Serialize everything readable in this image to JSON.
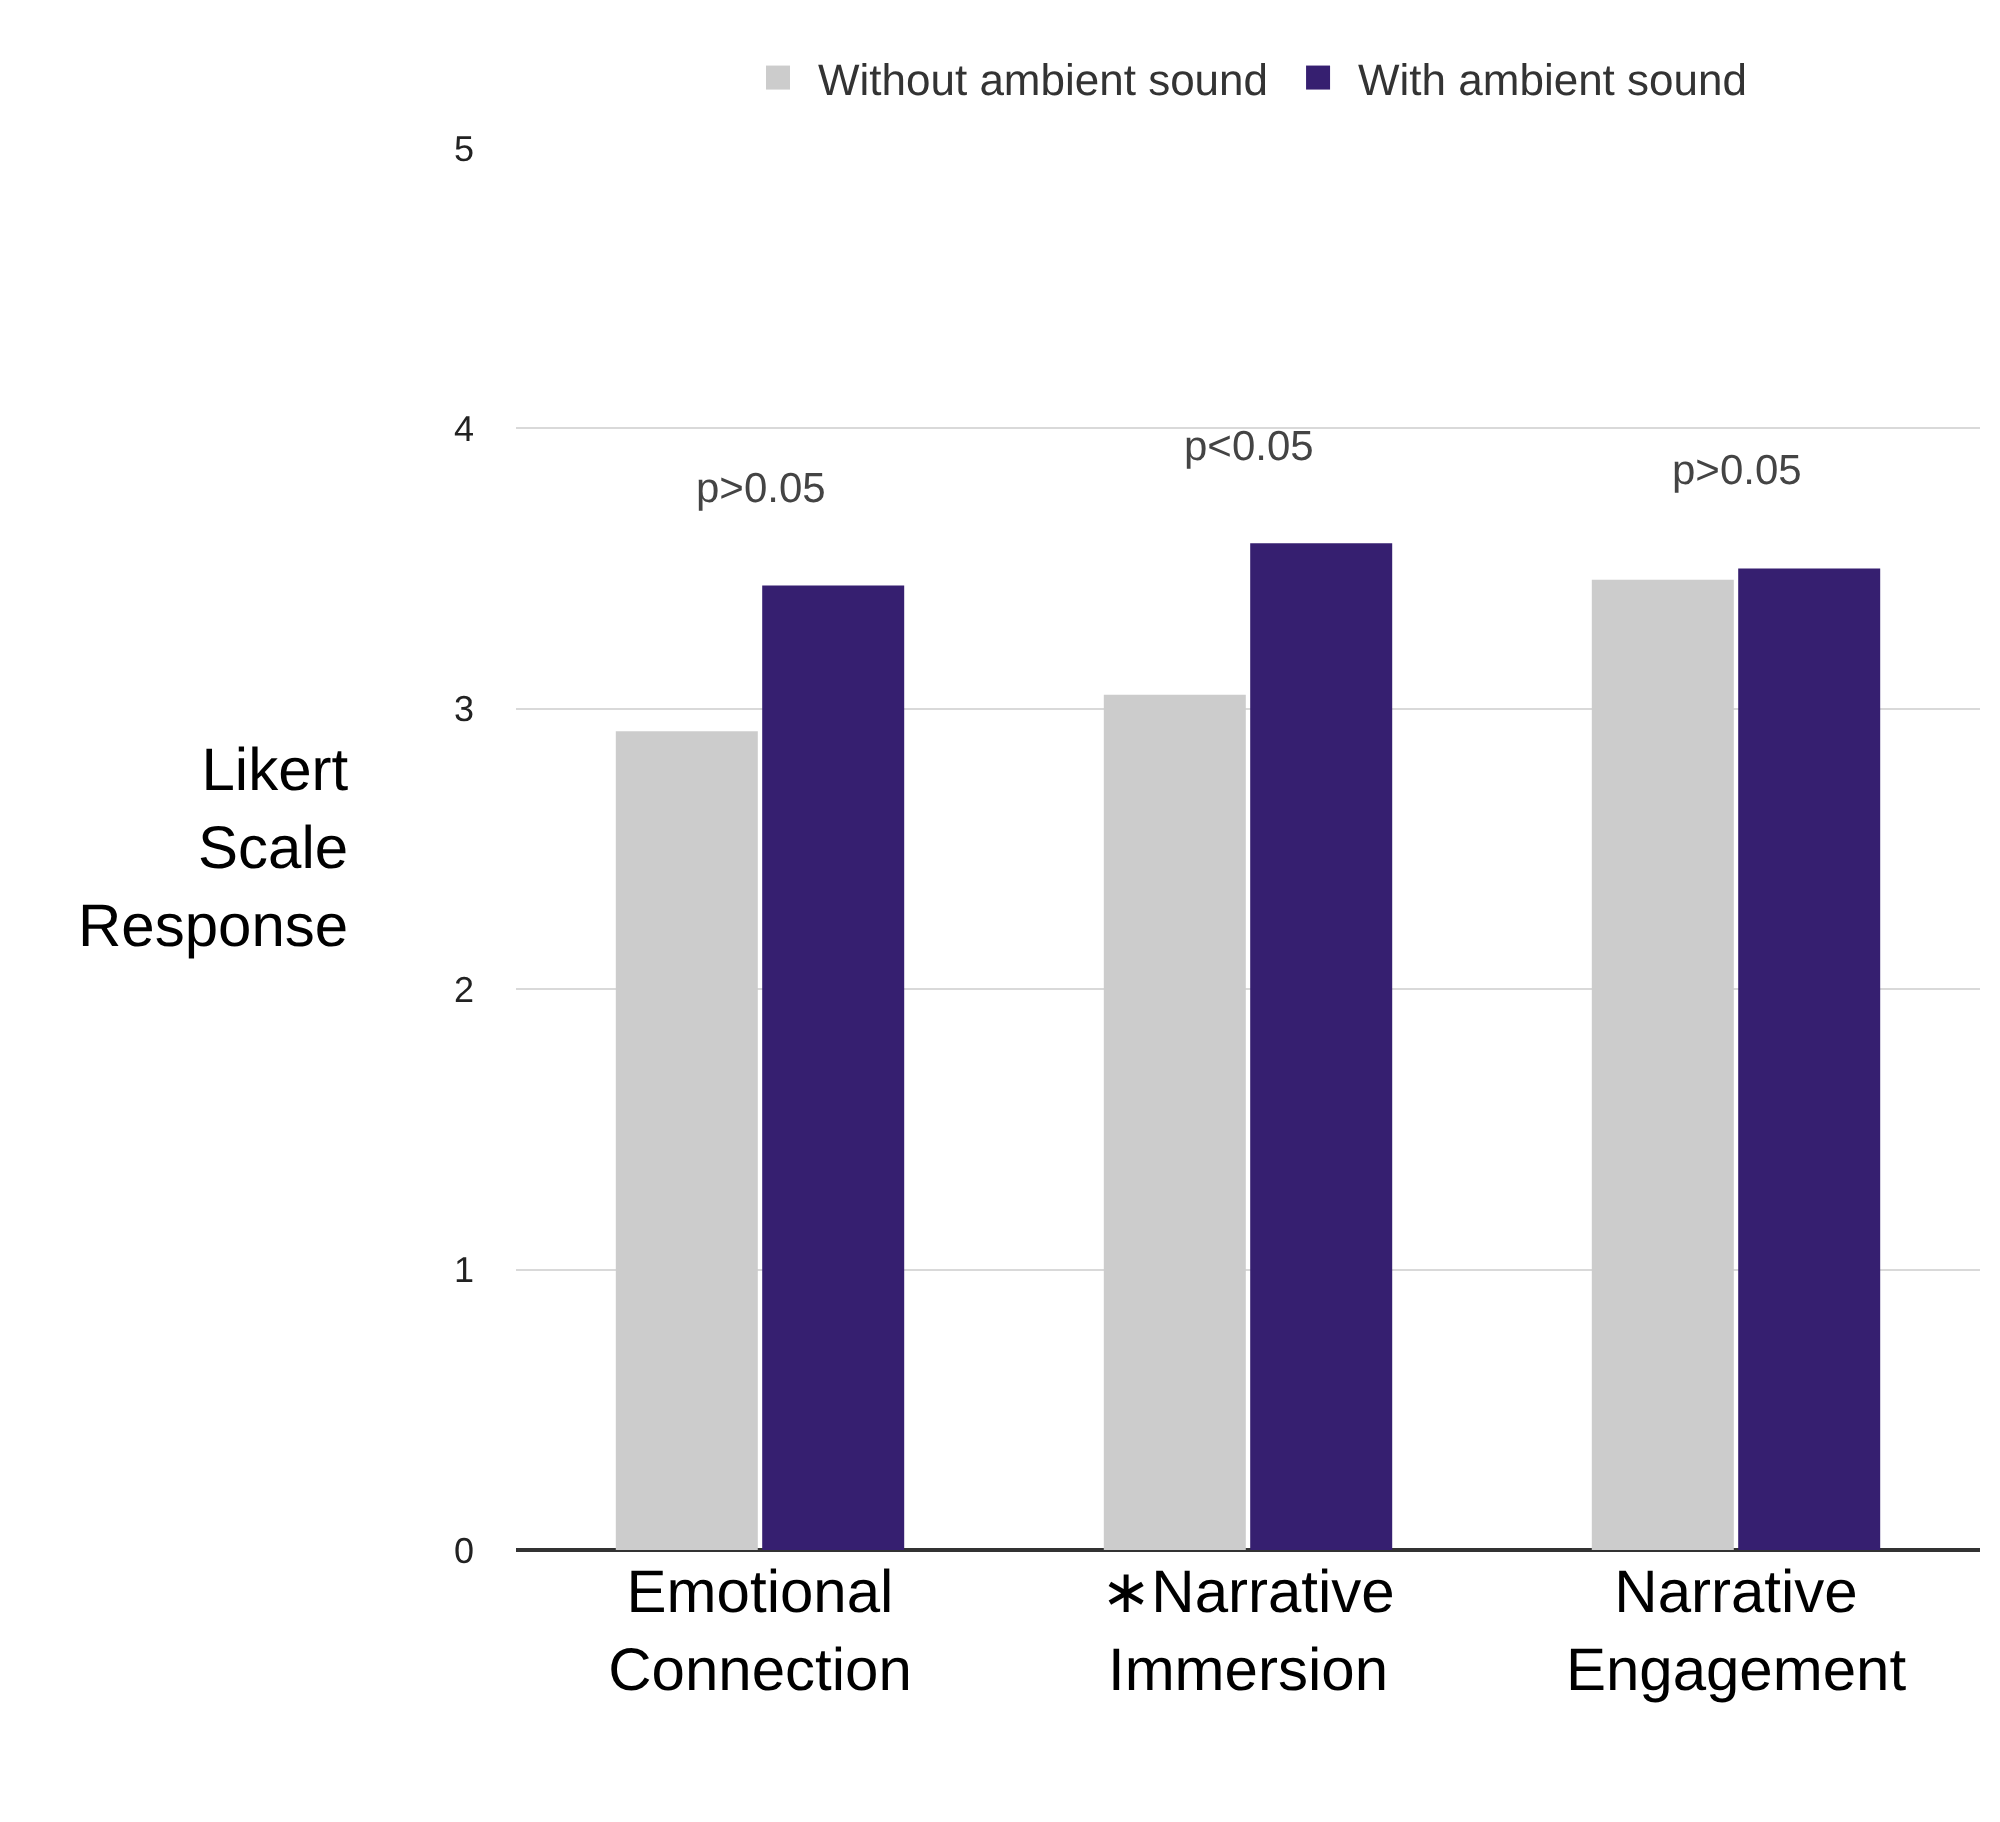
{
  "chart_data": {
    "type": "bar",
    "ylabel": "Likert Scale Response",
    "categories": [
      "Emotional Connection",
      "∗Narrative Immersion",
      "Narrative Engagement"
    ],
    "series": [
      {
        "name": "Without ambient sound",
        "color": "#cccccc",
        "values": [
          2.92,
          3.05,
          3.46
        ]
      },
      {
        "name": "With ambient sound",
        "color": "#361f70",
        "values": [
          3.44,
          3.59,
          3.5
        ]
      }
    ],
    "annotations": [
      "p>0.05",
      "p<0.05",
      "p>0.05"
    ],
    "ylim": [
      0,
      5
    ],
    "yticks": [
      0,
      1,
      2,
      3,
      4,
      5
    ],
    "grid": "y",
    "legend": "top"
  }
}
